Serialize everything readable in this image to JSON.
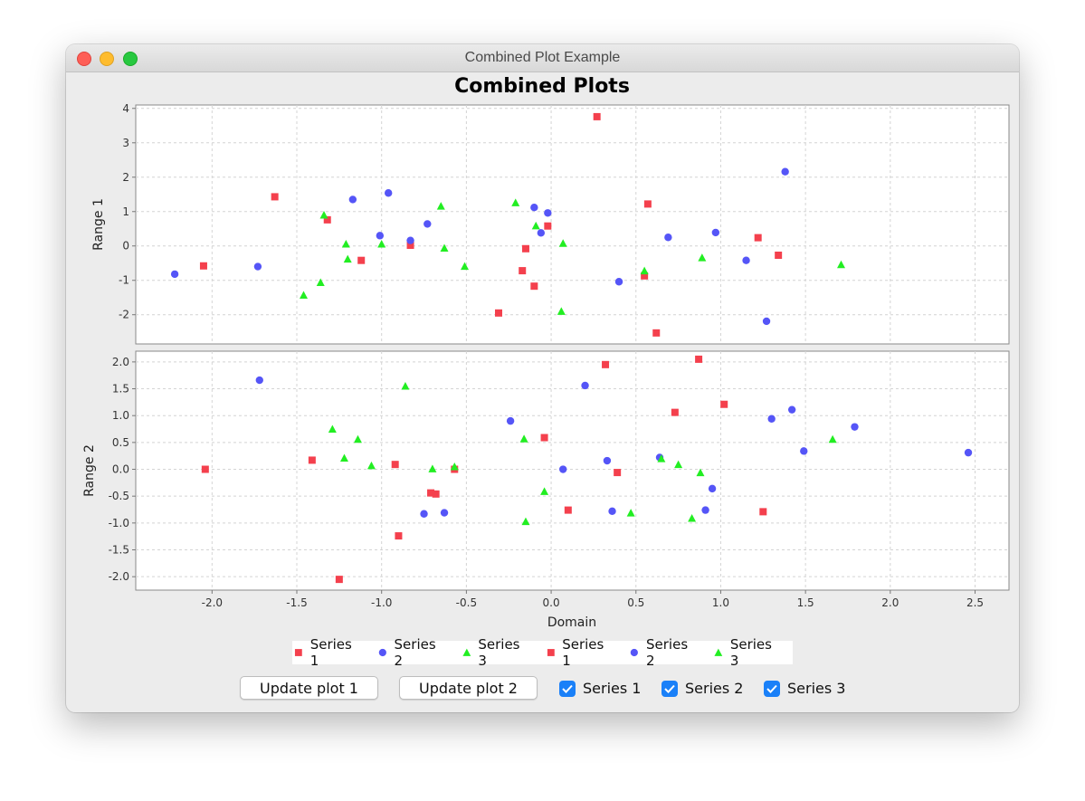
{
  "window": {
    "title": "Combined Plot Example"
  },
  "chart_data": {
    "type": "scatter",
    "title": "Combined Plots",
    "xlabel": "Domain",
    "xlim": [
      -2.45,
      2.7
    ],
    "xticks": [
      "-2.0",
      "-1.5",
      "-1.0",
      "-0.5",
      "0.0",
      "0.5",
      "1.0",
      "1.5",
      "2.0",
      "2.5"
    ],
    "xtick_values": [
      -2.0,
      -1.5,
      -1.0,
      -0.5,
      0.0,
      0.5,
      1.0,
      1.5,
      2.0,
      2.5
    ],
    "grid": true,
    "colors": {
      "series1": "#f4404d",
      "series2": "#5555f7",
      "series3": "#22ee22"
    },
    "subplots": [
      {
        "ylabel": "Range 1",
        "ylim": [
          -2.85,
          4.1
        ],
        "yticks": [
          "-2",
          "-1",
          "0",
          "1",
          "2",
          "3",
          "4"
        ],
        "ytick_values": [
          -2,
          -1,
          0,
          1,
          2,
          3,
          4
        ],
        "series": [
          {
            "name": "Series 1",
            "marker": "square",
            "points": [
              [
                -2.05,
                -0.58
              ],
              [
                -1.63,
                1.43
              ],
              [
                -1.32,
                0.76
              ],
              [
                -1.12,
                -0.42
              ],
              [
                -0.83,
                0.02
              ],
              [
                -0.31,
                -1.95
              ],
              [
                -0.17,
                -0.72
              ],
              [
                -0.15,
                -0.08
              ],
              [
                -0.1,
                -1.17
              ],
              [
                -0.02,
                0.58
              ],
              [
                0.27,
                3.76
              ],
              [
                0.55,
                -0.87
              ],
              [
                0.57,
                1.22
              ],
              [
                0.62,
                -2.53
              ],
              [
                1.22,
                0.24
              ],
              [
                1.34,
                -0.27
              ]
            ]
          },
          {
            "name": "Series 2",
            "marker": "circle",
            "points": [
              [
                -2.22,
                -0.82
              ],
              [
                -1.73,
                -0.6
              ],
              [
                -1.17,
                1.35
              ],
              [
                -1.01,
                0.3
              ],
              [
                -0.96,
                1.54
              ],
              [
                -0.83,
                0.16
              ],
              [
                -0.73,
                0.64
              ],
              [
                -0.1,
                1.12
              ],
              [
                -0.06,
                0.38
              ],
              [
                -0.02,
                0.96
              ],
              [
                0.4,
                -1.04
              ],
              [
                0.69,
                0.25
              ],
              [
                0.97,
                0.39
              ],
              [
                1.15,
                -0.42
              ],
              [
                1.27,
                -2.19
              ],
              [
                1.38,
                2.16
              ]
            ]
          },
          {
            "name": "Series 3",
            "marker": "triangle",
            "points": [
              [
                -1.46,
                -1.43
              ],
              [
                -1.36,
                -1.06
              ],
              [
                -1.34,
                0.9
              ],
              [
                -1.21,
                0.06
              ],
              [
                -1.2,
                -0.38
              ],
              [
                -1.0,
                0.06
              ],
              [
                -0.65,
                1.16
              ],
              [
                -0.63,
                -0.06
              ],
              [
                -0.51,
                -0.59
              ],
              [
                -0.21,
                1.26
              ],
              [
                -0.09,
                0.59
              ],
              [
                0.06,
                -1.9
              ],
              [
                0.07,
                0.08
              ],
              [
                0.55,
                -0.72
              ],
              [
                0.89,
                -0.34
              ],
              [
                1.71,
                -0.54
              ]
            ]
          }
        ]
      },
      {
        "ylabel": "Range 2",
        "ylim": [
          -2.25,
          2.2
        ],
        "yticks": [
          "-2.0",
          "-1.5",
          "-1.0",
          "-0.5",
          "0.0",
          "0.5",
          "1.0",
          "1.5",
          "2.0"
        ],
        "ytick_values": [
          -2.0,
          -1.5,
          -1.0,
          -0.5,
          0.0,
          0.5,
          1.0,
          1.5,
          2.0
        ],
        "series": [
          {
            "name": "Series 1",
            "marker": "square",
            "points": [
              [
                -2.04,
                0.0
              ],
              [
                -1.41,
                0.17
              ],
              [
                -1.25,
                -2.05
              ],
              [
                -0.92,
                0.09
              ],
              [
                -0.9,
                -1.24
              ],
              [
                -0.71,
                -0.44
              ],
              [
                -0.68,
                -0.46
              ],
              [
                -0.57,
                0.0
              ],
              [
                -0.04,
                0.59
              ],
              [
                0.1,
                -0.76
              ],
              [
                0.32,
                1.95
              ],
              [
                0.39,
                -0.06
              ],
              [
                0.73,
                1.06
              ],
              [
                0.87,
                2.05
              ],
              [
                1.02,
                1.21
              ],
              [
                1.25,
                -0.79
              ]
            ]
          },
          {
            "name": "Series 2",
            "marker": "circle",
            "points": [
              [
                -1.72,
                1.66
              ],
              [
                -0.75,
                -0.83
              ],
              [
                -0.63,
                -0.81
              ],
              [
                -0.24,
                0.9
              ],
              [
                0.07,
                0.0
              ],
              [
                0.2,
                1.56
              ],
              [
                0.33,
                0.16
              ],
              [
                0.36,
                -0.78
              ],
              [
                0.64,
                0.22
              ],
              [
                0.91,
                -0.76
              ],
              [
                0.95,
                -0.36
              ],
              [
                1.3,
                0.94
              ],
              [
                1.42,
                1.11
              ],
              [
                1.49,
                0.34
              ],
              [
                1.79,
                0.79
              ],
              [
                2.46,
                0.31
              ]
            ]
          },
          {
            "name": "Series 3",
            "marker": "triangle",
            "points": [
              [
                -1.29,
                0.75
              ],
              [
                -1.22,
                0.21
              ],
              [
                -1.14,
                0.56
              ],
              [
                -1.06,
                0.07
              ],
              [
                -0.86,
                1.55
              ],
              [
                -0.7,
                0.01
              ],
              [
                -0.57,
                0.05
              ],
              [
                -0.16,
                0.57
              ],
              [
                -0.15,
                -0.97
              ],
              [
                -0.04,
                -0.41
              ],
              [
                0.47,
                -0.81
              ],
              [
                0.65,
                0.2
              ],
              [
                0.75,
                0.09
              ],
              [
                0.83,
                -0.91
              ],
              [
                0.88,
                -0.06
              ],
              [
                1.66,
                0.56
              ]
            ]
          }
        ]
      }
    ]
  },
  "legend": [
    {
      "label": "Series 1",
      "marker": "square",
      "color": "#f4404d"
    },
    {
      "label": "Series 2",
      "marker": "circle",
      "color": "#5555f7"
    },
    {
      "label": "Series 3",
      "marker": "triangle",
      "color": "#22ee22"
    },
    {
      "label": "Series 1",
      "marker": "square",
      "color": "#f4404d"
    },
    {
      "label": "Series 2",
      "marker": "circle",
      "color": "#5555f7"
    },
    {
      "label": "Series 3",
      "marker": "triangle",
      "color": "#22ee22"
    }
  ],
  "controls": {
    "update_plot_1": "Update plot 1",
    "update_plot_2": "Update plot 2",
    "checkboxes": [
      {
        "label": "Series 1",
        "checked": true
      },
      {
        "label": "Series 2",
        "checked": true
      },
      {
        "label": "Series 3",
        "checked": true
      }
    ]
  }
}
